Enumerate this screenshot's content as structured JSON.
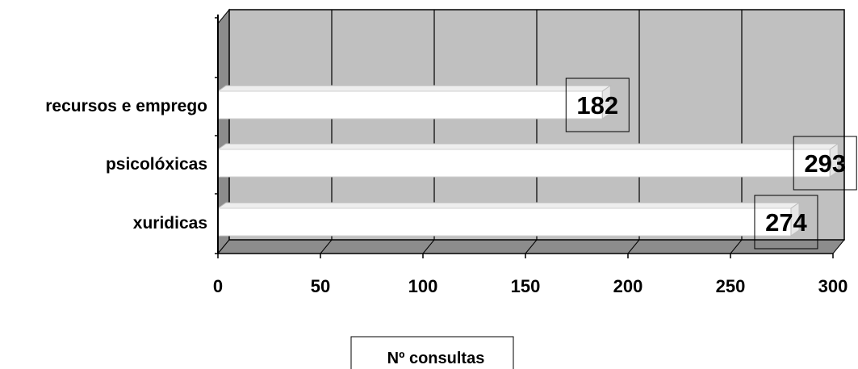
{
  "chart_data": {
    "type": "bar",
    "orientation": "horizontal",
    "categories": [
      "recursos e emprego",
      "psicolóxicas",
      "xuridicas"
    ],
    "series": [
      {
        "name": "Nº consultas",
        "values": [
          182,
          293,
          274
        ]
      }
    ],
    "data_labels": [
      "182",
      "293",
      "274"
    ],
    "xlim": [
      0,
      300
    ],
    "x_ticks": [
      "0",
      "50",
      "100",
      "150",
      "200",
      "250",
      "300"
    ],
    "grid": true,
    "legend_position": "bottom",
    "colors": {
      "plot_background": "#c0c0c0",
      "bar_fill": "#ffffff",
      "gridline": "#000000"
    }
  }
}
